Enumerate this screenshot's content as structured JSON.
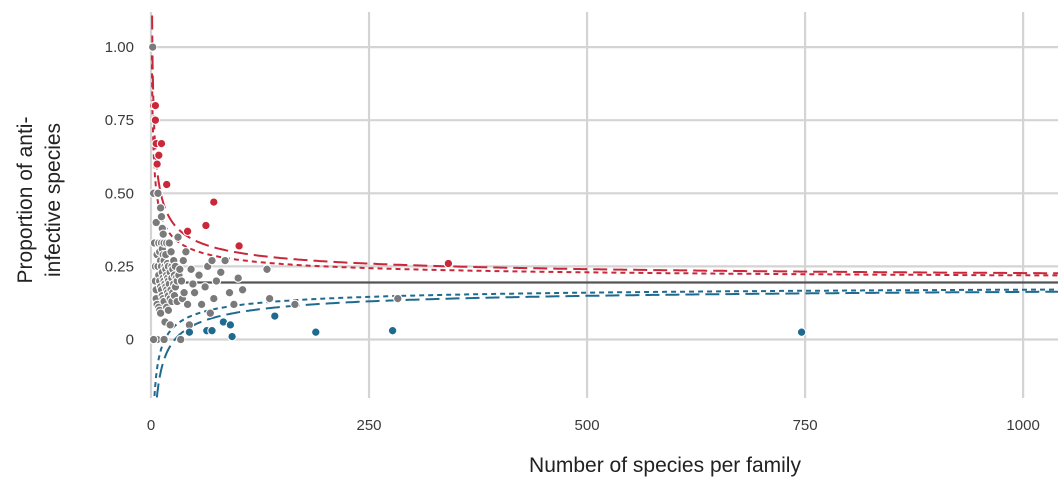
{
  "chart_data": {
    "type": "scatter",
    "xlabel": "Number of species per family",
    "ylabel_lines": [
      "Proportion of anti-",
      "infective species"
    ],
    "xlim": [
      0,
      1040
    ],
    "ylim": [
      -0.2,
      1.12
    ],
    "x_ticks": [
      {
        "value": 0,
        "label": "0"
      },
      {
        "value": 250,
        "label": "250"
      },
      {
        "value": 500,
        "label": "500"
      },
      {
        "value": 750,
        "label": "750"
      },
      {
        "value": 1000,
        "label": "1000"
      }
    ],
    "y_ticks": [
      {
        "value": 0,
        "label": "0"
      },
      {
        "value": 0.25,
        "label": "0.25"
      },
      {
        "value": 0.5,
        "label": "0.50"
      },
      {
        "value": 0.75,
        "label": "0.75"
      },
      {
        "value": 1.0,
        "label": "1.00"
      }
    ],
    "grid": true,
    "mean_proportion": 0.195,
    "colors": {
      "high": "#c8283a",
      "low": "#1f6a8f",
      "neutral": "#7a7a7a",
      "mean_line": "#555555",
      "grid": "#d4d4d4"
    },
    "bounds": [
      {
        "group": "high",
        "style": "dashed",
        "level": 0.99
      },
      {
        "group": "high",
        "style": "dotted",
        "level": 0.95
      },
      {
        "group": "low",
        "style": "dotted",
        "level": 0.95
      },
      {
        "group": "low",
        "style": "dashed",
        "level": 0.99
      }
    ],
    "series": [
      {
        "group": "high",
        "points": [
          [
            3,
            0.8
          ],
          [
            5,
            0.8
          ],
          [
            5,
            0.75
          ],
          [
            6,
            0.67
          ],
          [
            7,
            0.6
          ],
          [
            9,
            0.63
          ],
          [
            12,
            0.67
          ],
          [
            18,
            0.53
          ],
          [
            42,
            0.37
          ],
          [
            63,
            0.39
          ],
          [
            72,
            0.47
          ],
          [
            101,
            0.32
          ],
          [
            341,
            0.26
          ]
        ]
      },
      {
        "group": "low",
        "points": [
          [
            44,
            0.025
          ],
          [
            64,
            0.03
          ],
          [
            70,
            0.03
          ],
          [
            83,
            0.06
          ],
          [
            91,
            0.05
          ],
          [
            93,
            0.01
          ],
          [
            142,
            0.08
          ],
          [
            189,
            0.025
          ],
          [
            277,
            0.03
          ],
          [
            746,
            0.025
          ]
        ]
      },
      {
        "group": "neutral",
        "points": [
          [
            2,
            1.0
          ],
          [
            3,
            0.5
          ],
          [
            4,
            0.33
          ],
          [
            5,
            0.25
          ],
          [
            5,
            0.2
          ],
          [
            6,
            0.4
          ],
          [
            6,
            0.17
          ],
          [
            6,
            0.14
          ],
          [
            7,
            0.29
          ],
          [
            7,
            0.0
          ],
          [
            7,
            0.12
          ],
          [
            8,
            0.5
          ],
          [
            8,
            0.25
          ],
          [
            9,
            0.33
          ],
          [
            9,
            0.22
          ],
          [
            9,
            0.11
          ],
          [
            10,
            0.3
          ],
          [
            10,
            0.2
          ],
          [
            10,
            0.1
          ],
          [
            11,
            0.45
          ],
          [
            11,
            0.27
          ],
          [
            11,
            0.18
          ],
          [
            11,
            0.09
          ],
          [
            12,
            0.42
          ],
          [
            12,
            0.33
          ],
          [
            12,
            0.25
          ],
          [
            12,
            0.17
          ],
          [
            13,
            0.38
          ],
          [
            13,
            0.31
          ],
          [
            13,
            0.23
          ],
          [
            13,
            0.15
          ],
          [
            14,
            0.36
          ],
          [
            14,
            0.29
          ],
          [
            14,
            0.21
          ],
          [
            14,
            0.14
          ],
          [
            15,
            0.33
          ],
          [
            15,
            0.27
          ],
          [
            15,
            0.2
          ],
          [
            15,
            0.13
          ],
          [
            16,
            0.25
          ],
          [
            16,
            0.19
          ],
          [
            16,
            0.06
          ],
          [
            17,
            0.29
          ],
          [
            17,
            0.24
          ],
          [
            17,
            0.18
          ],
          [
            18,
            0.33
          ],
          [
            18,
            0.22
          ],
          [
            18,
            0.17
          ],
          [
            18,
            0.11
          ],
          [
            19,
            0.26
          ],
          [
            19,
            0.21
          ],
          [
            19,
            0.16
          ],
          [
            20,
            0.25
          ],
          [
            20,
            0.2
          ],
          [
            20,
            0.15
          ],
          [
            20,
            0.1
          ],
          [
            21,
            0.33
          ],
          [
            21,
            0.19
          ],
          [
            22,
            0.23
          ],
          [
            22,
            0.14
          ],
          [
            22,
            0.05
          ],
          [
            23,
            0.3
          ],
          [
            23,
            0.17
          ],
          [
            24,
            0.25
          ],
          [
            24,
            0.21
          ],
          [
            24,
            0.13
          ],
          [
            25,
            0.24
          ],
          [
            25,
            0.16
          ],
          [
            26,
            0.27
          ],
          [
            26,
            0.19
          ],
          [
            27,
            0.22
          ],
          [
            27,
            0.15
          ],
          [
            28,
            0.25
          ],
          [
            28,
            0.18
          ],
          [
            29,
            0.21
          ],
          [
            30,
            0.2
          ],
          [
            30,
            0.13
          ],
          [
            31,
            0.35
          ],
          [
            32,
            0.22
          ],
          [
            33,
            0.24
          ],
          [
            34,
            0.0
          ],
          [
            35,
            0.2
          ],
          [
            36,
            0.14
          ],
          [
            37,
            0.27
          ],
          [
            38,
            0.16
          ],
          [
            40,
            0.3
          ],
          [
            42,
            0.12
          ],
          [
            44,
            0.05
          ],
          [
            46,
            0.24
          ],
          [
            48,
            0.19
          ],
          [
            50,
            0.16
          ],
          [
            55,
            0.22
          ],
          [
            58,
            0.12
          ],
          [
            62,
            0.18
          ],
          [
            65,
            0.25
          ],
          [
            68,
            0.09
          ],
          [
            70,
            0.27
          ],
          [
            72,
            0.14
          ],
          [
            75,
            0.2
          ],
          [
            80,
            0.23
          ],
          [
            85,
            0.27
          ],
          [
            90,
            0.16
          ],
          [
            95,
            0.12
          ],
          [
            100,
            0.21
          ],
          [
            105,
            0.17
          ],
          [
            133,
            0.24
          ],
          [
            136,
            0.14
          ],
          [
            165,
            0.12
          ],
          [
            283,
            0.14
          ],
          [
            3,
            0.0
          ],
          [
            15,
            0.0
          ]
        ]
      }
    ]
  }
}
